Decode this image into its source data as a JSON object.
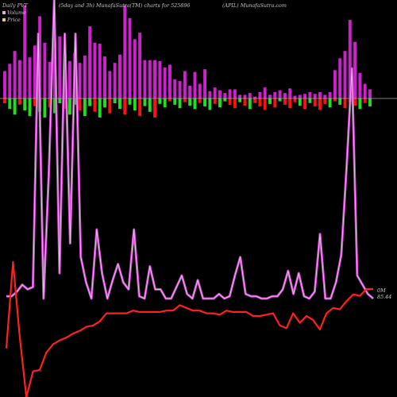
{
  "header": {
    "period_label": "Daily PVT",
    "subtitle": "(5day and 3h) MunafaSutra(TM) charts for 525896",
    "symbol_site": "(APIL) MunafaSutra.com"
  },
  "legend": {
    "volume_label": "Volume",
    "price_label": "Price",
    "volume_color": "#e8a8e0",
    "price_color": "#f4c27a"
  },
  "colors": {
    "background": "#000000",
    "pvt_line": "#cc44cc",
    "price_line": "#ff2020",
    "bar_up": "#cc22cc",
    "bar_down_pos": "#ff1010",
    "bar_down_neg": "#22dd22",
    "zero_line": "#aaaaaa"
  },
  "chart_data": {
    "type": "line",
    "end_labels": {
      "pvt": "0M",
      "price": "85.44"
    },
    "series": [
      {
        "name": "Volume",
        "values": [
          0.3,
          0.38,
          0.52,
          0.42,
          1.02,
          0.45,
          0.58,
          0.9,
          0.61,
          0.4,
          0.62,
          0.68,
          0.4,
          0.41,
          0.5,
          0.39,
          0.47,
          0.79,
          0.61,
          0.6,
          0.46,
          0.3,
          0.39,
          0.48,
          1.02,
          0.88,
          0.65,
          0.72,
          0.42,
          0.42,
          0.42,
          0.41,
          0.34,
          0.37,
          0.21,
          0.19,
          0.3,
          0.14,
          0.29,
          0.16,
          0.32,
          0.08,
          0.12,
          0.09,
          0.06,
          0.1,
          0.1,
          0.04,
          0.04,
          0.06,
          0.02,
          0.07,
          0.12,
          0.04,
          0.07,
          0.09,
          0.06,
          0.11,
          0.03,
          0.04,
          0.05,
          0.07,
          0.05,
          0.07,
          0.04,
          0.07,
          0.31,
          0.44,
          0.52,
          0.86,
          0.62,
          0.28,
          0.16,
          0.1
        ]
      },
      {
        "name": "PVT",
        "values": [
          0.01,
          0.01,
          0.03,
          0.06,
          0.04,
          0.05,
          1.15,
          0.0,
          0.55,
          1.3,
          0.11,
          1.15,
          0.24,
          1.15,
          0.18,
          0.07,
          0.0,
          0.3,
          0.11,
          0.0,
          0.08,
          0.15,
          0.07,
          0.04,
          0.3,
          0.01,
          0.0,
          0.14,
          0.04,
          0.04,
          0.0,
          0.0,
          0.05,
          0.1,
          0.02,
          0.0,
          0.08,
          0.0,
          0.0,
          0.0,
          0.02,
          0.0,
          0.01,
          0.1,
          0.18,
          0.02,
          0.01,
          0.01,
          0.0,
          0.0,
          0.01,
          0.01,
          0.04,
          0.12,
          0.02,
          0.11,
          0.01,
          0.0,
          0.03,
          0.28,
          0.0,
          0.0,
          0.07,
          0.19,
          0.57,
          1.0,
          0.1,
          0.06,
          0.02,
          0.0
        ]
      },
      {
        "name": "Price",
        "values": [
          0.36,
          1.0,
          0.45,
          0.0,
          0.19,
          0.2,
          0.33,
          0.39,
          0.42,
          0.44,
          0.47,
          0.49,
          0.52,
          0.53,
          0.56,
          0.62,
          0.62,
          0.62,
          0.62,
          0.64,
          0.63,
          0.63,
          0.63,
          0.63,
          0.64,
          0.64,
          0.68,
          0.66,
          0.64,
          0.64,
          0.62,
          0.62,
          0.61,
          0.64,
          0.63,
          0.63,
          0.63,
          0.6,
          0.6,
          0.61,
          0.62,
          0.53,
          0.51,
          0.62,
          0.55,
          0.6,
          0.57,
          0.5,
          0.62,
          0.66,
          0.65,
          0.71,
          0.76,
          0.75,
          0.8,
          0.8
        ]
      }
    ]
  }
}
